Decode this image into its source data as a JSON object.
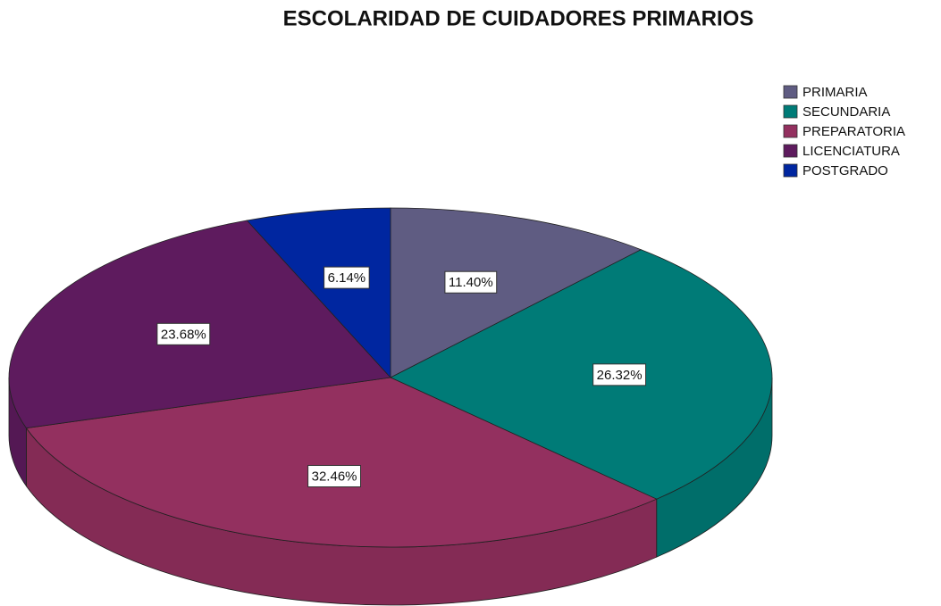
{
  "chart_data": {
    "type": "pie",
    "title": "ESCOLARIDAD DE CUIDADORES PRIMARIOS",
    "categories": [
      "PRIMARIA",
      "SECUNDARIA",
      "PREPARATORIA",
      "LICENCIATURA",
      "POSTGRADO"
    ],
    "values": [
      11.4,
      26.32,
      32.46,
      23.68,
      6.14
    ],
    "value_labels": [
      "11.40%",
      "26.32%",
      "32.46%",
      "23.68%",
      "6.14%"
    ],
    "colors": [
      "#5f5c82",
      "#007b77",
      "#93305f",
      "#5e1b5e",
      "#0026a0"
    ],
    "legend": "top-right"
  }
}
